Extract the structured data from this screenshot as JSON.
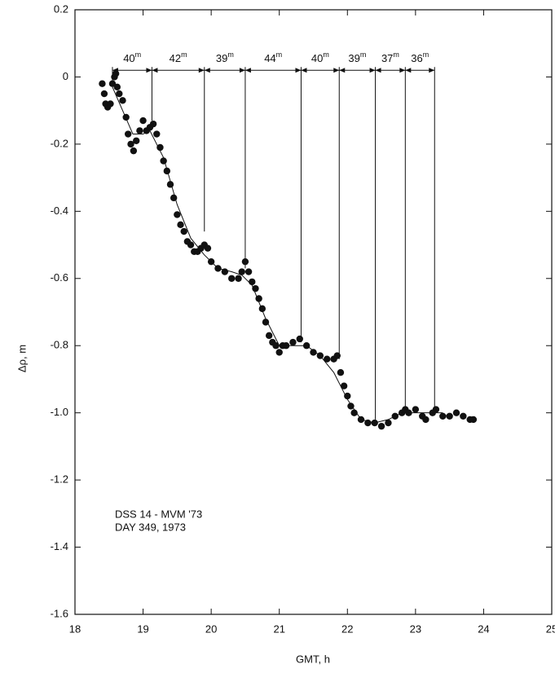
{
  "chart_data": {
    "type": "scatter",
    "xlabel": "GMT, h",
    "ylabel": "Δρ, m",
    "annotations": [
      "DSS 14 - MVM '73",
      "DAY 349, 1973"
    ],
    "xlim": [
      18,
      25
    ],
    "xticks": [
      18,
      19,
      20,
      21,
      22,
      23,
      24,
      25
    ],
    "ylim": [
      -1.6,
      0.2
    ],
    "yticks": [
      0.2,
      0,
      -0.2,
      -0.4,
      -0.6,
      -0.8,
      {
        "value": -1,
        "label": "-1.0"
      },
      -1.2,
      -1.4,
      -1.6
    ],
    "series": [
      {
        "color": "#111",
        "x": [
          18.4,
          18.43,
          18.45,
          18.48,
          18.52,
          18.55,
          18.58,
          18.6,
          18.62,
          18.65,
          18.7,
          18.75,
          18.78,
          18.82,
          18.86,
          18.9,
          18.95,
          19.0,
          19.05,
          19.1,
          19.15,
          19.2,
          19.25,
          19.3,
          19.35,
          19.4,
          19.45,
          19.5,
          19.55,
          19.6,
          19.65,
          19.7,
          19.75,
          19.8,
          19.85,
          19.9,
          19.95,
          20.0,
          20.1,
          20.2,
          20.3,
          20.4,
          20.45,
          20.5,
          20.55,
          20.6,
          20.65,
          20.7,
          20.75,
          20.8,
          20.85,
          20.9,
          20.95,
          21.0,
          21.05,
          21.1,
          21.2,
          21.3,
          21.4,
          21.5,
          21.6,
          21.7,
          21.8,
          21.85,
          21.9,
          21.95,
          22.0,
          22.05,
          22.1,
          22.2,
          22.3,
          22.4,
          22.5,
          22.6,
          22.7,
          22.8,
          22.85,
          22.9,
          23.0,
          23.1,
          23.15,
          23.25,
          23.3,
          23.4,
          23.5,
          23.6,
          23.7,
          23.8,
          23.85
        ],
        "values": [
          -0.02,
          -0.05,
          -0.08,
          -0.09,
          -0.08,
          -0.02,
          0.0,
          0.01,
          -0.03,
          -0.05,
          -0.07,
          -0.12,
          -0.17,
          -0.2,
          -0.22,
          -0.19,
          -0.16,
          -0.13,
          -0.16,
          -0.15,
          -0.14,
          -0.17,
          -0.21,
          -0.25,
          -0.28,
          -0.32,
          -0.36,
          -0.41,
          -0.44,
          -0.46,
          -0.49,
          -0.5,
          -0.52,
          -0.52,
          -0.51,
          -0.5,
          -0.51,
          -0.55,
          -0.57,
          -0.58,
          -0.6,
          -0.6,
          -0.58,
          -0.55,
          -0.58,
          -0.61,
          -0.63,
          -0.66,
          -0.69,
          -0.73,
          -0.77,
          -0.79,
          -0.8,
          -0.82,
          -0.8,
          -0.8,
          -0.79,
          -0.78,
          -0.8,
          -0.82,
          -0.83,
          -0.84,
          -0.84,
          -0.83,
          -0.88,
          -0.92,
          -0.95,
          -0.98,
          -1.0,
          -1.02,
          -1.03,
          -1.03,
          -1.04,
          -1.03,
          -1.01,
          -1.0,
          -0.99,
          -1.0,
          -0.99,
          -1.01,
          -1.02,
          -1.0,
          -0.99,
          -1.01,
          -1.01,
          -1.0,
          -1.01,
          -1.02,
          -1.02
        ]
      },
      {
        "type": "line",
        "color": "#111",
        "x": [
          18.55,
          18.7,
          18.85,
          19.0,
          19.1,
          19.3,
          19.5,
          19.7,
          19.9,
          20.1,
          20.3,
          20.45,
          20.6,
          20.8,
          21.0,
          21.2,
          21.4,
          21.6,
          21.8,
          22.0,
          22.2,
          22.4,
          22.6,
          22.8,
          23.0,
          23.2,
          23.4
        ],
        "values": [
          -0.03,
          -0.1,
          -0.17,
          -0.17,
          -0.16,
          -0.24,
          -0.38,
          -0.48,
          -0.53,
          -0.57,
          -0.58,
          -0.59,
          -0.62,
          -0.72,
          -0.8,
          -0.8,
          -0.8,
          -0.83,
          -0.88,
          -0.96,
          -1.02,
          -1.03,
          -1.02,
          -1.0,
          -1.0,
          -1.0,
          -1.0
        ]
      }
    ],
    "markers": {
      "level": 0.02,
      "x": [
        18.55,
        19.13,
        19.9,
        20.5,
        21.32,
        21.88,
        22.41,
        22.85,
        23.28
      ],
      "y": [
        -0.01,
        -0.13,
        -0.46,
        -0.57,
        -0.79,
        -0.84,
        -1.02,
        -0.99,
        -1.0
      ]
    },
    "intervals": [
      "40",
      "42",
      "39",
      "44",
      "40",
      "39",
      "37",
      "36"
    ],
    "interval_unit": "m"
  }
}
